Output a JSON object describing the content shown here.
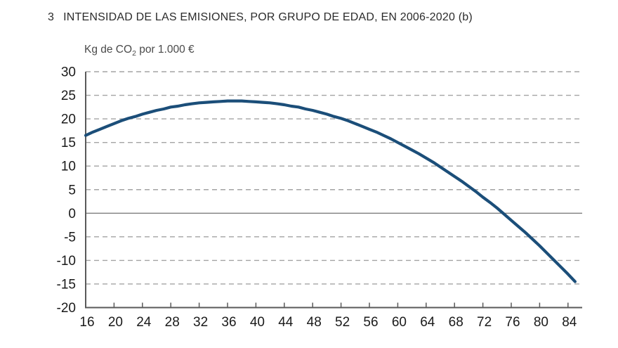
{
  "figure": {
    "number": "3",
    "title": "INTENSIDAD DE LAS EMISIONES, POR GRUPO DE EDAD, EN 2006-2020 (b)",
    "unit_label": {
      "pre": "Kg de CO",
      "sub": "2",
      "post": " por 1.000 €"
    }
  },
  "colors": {
    "line": "#1b4e79",
    "grid": "#a3a3a3",
    "zero_line": "#7f7f7f",
    "spine": "#5a5a5a",
    "tick_text": "#1a1a1a",
    "title_text": "#2b2b2b"
  },
  "chart_data": {
    "type": "line",
    "title": "3 INTENSIDAD DE LAS EMISIONES, POR GRUPO DE EDAD, EN 2006-2020 (b)",
    "ylabel": "Kg de CO2 por 1.000 €",
    "xlabel": "",
    "legend": "none",
    "grid": "horizontal-dashed, solid zero line",
    "xlim": [
      16,
      86
    ],
    "ylim": [
      -20,
      30
    ],
    "x_ticks": [
      16,
      20,
      24,
      28,
      32,
      36,
      40,
      44,
      48,
      52,
      56,
      60,
      64,
      68,
      72,
      76,
      80,
      84
    ],
    "y_ticks": [
      30,
      25,
      20,
      15,
      10,
      5,
      0,
      -5,
      -10,
      -15,
      -20
    ],
    "series": [
      {
        "x": [
          16,
          17,
          18,
          19,
          20,
          21,
          22,
          23,
          24,
          25,
          26,
          27,
          28,
          29,
          30,
          31,
          32,
          33,
          34,
          35,
          36,
          37,
          38,
          39,
          40,
          41,
          42,
          43,
          44,
          45,
          46,
          47,
          48,
          49,
          50,
          51,
          52,
          53,
          54,
          55,
          56,
          57,
          58,
          59,
          60,
          61,
          62,
          63,
          64,
          65,
          66,
          67,
          68,
          69,
          70,
          71,
          72,
          73,
          74,
          75,
          76,
          77,
          78,
          79,
          80,
          81,
          82,
          83,
          84,
          85
        ],
        "y": [
          16.5,
          17.2,
          17.8,
          18.4,
          19.0,
          19.6,
          20.1,
          20.5,
          21.0,
          21.4,
          21.8,
          22.1,
          22.5,
          22.7,
          23.0,
          23.2,
          23.4,
          23.5,
          23.6,
          23.7,
          23.8,
          23.8,
          23.8,
          23.7,
          23.6,
          23.5,
          23.4,
          23.2,
          23.0,
          22.7,
          22.5,
          22.1,
          21.8,
          21.4,
          21.0,
          20.5,
          20.1,
          19.6,
          19.0,
          18.4,
          17.8,
          17.2,
          16.5,
          15.8,
          15.0,
          14.2,
          13.4,
          12.6,
          11.7,
          10.8,
          9.8,
          8.8,
          7.8,
          6.8,
          5.7,
          4.6,
          3.4,
          2.3,
          1.1,
          -0.2,
          -1.5,
          -2.8,
          -4.1,
          -5.5,
          -6.9,
          -8.4,
          -9.9,
          -11.4,
          -12.9,
          -14.5
        ]
      }
    ],
    "annotations": {
      "peak_value": 23.8,
      "peak_age": 37,
      "start_value": 16.5,
      "end_value": -14.5,
      "zero_crossing_age": 75
    }
  }
}
